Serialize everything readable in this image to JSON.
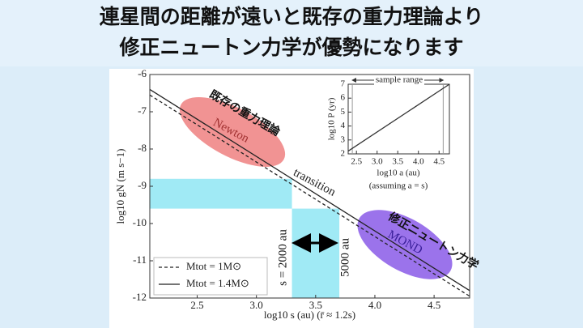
{
  "slide_title": [
    "連星間の距離が遠いと既存の重力理論より",
    "修正ニュートン力学が優勢になります"
  ],
  "overlay_labels": [
    "既存の重力理論",
    "修正ニュートン力学"
  ],
  "chart_data": [
    {
      "type": "line",
      "xlabel": "log10 s (au)   (r̄ ≈ 1.2s)",
      "ylabel": "log10 gN (m s−1)",
      "x": [
        2.1,
        4.8
      ],
      "series": [
        {
          "name": "Mtot = 1M⊙",
          "color": "#222222",
          "dash": true,
          "values": [
            -6.55,
            -11.95
          ]
        },
        {
          "name": "Mtot = 1.4M⊙",
          "color": "#222222",
          "dash": false,
          "values": [
            -6.4,
            -11.8
          ]
        }
      ],
      "xlim": [
        2.1,
        4.8
      ],
      "ylim": [
        -12,
        -6
      ],
      "xticks": [
        2.5,
        {
          "value": 3,
          "label": "3.0"
        },
        3.5,
        {
          "value": 4,
          "label": "4.0"
        },
        4.5
      ],
      "yticks": [
        -6,
        -7,
        -8,
        -9,
        -10,
        -11,
        -12
      ],
      "x_band": [
        3.3,
        3.7
      ],
      "y_band": [
        -9.6,
        -8.8
      ],
      "band_color": "#8fe6f3",
      "annotations": [
        "Newton",
        "transition",
        "MOND",
        "s = 2000 au",
        "5000 au"
      ],
      "legend": "lower left"
    },
    {
      "type": "line",
      "title": "sample range",
      "xlabel": "log10 a (au)",
      "ylabel": "log10 P (yr)",
      "note": "(assuming a = s)",
      "x": [
        2.3,
        4.75
      ],
      "series": [
        {
          "color": "#333333",
          "values": [
            2.2,
            7.0
          ]
        }
      ],
      "xlim": [
        2.3,
        4.75
      ],
      "ylim": [
        2,
        7
      ],
      "xticks": [
        2.5,
        {
          "value": 3,
          "label": "3.0"
        },
        3.5,
        {
          "value": 4,
          "label": "4.0"
        },
        4.5
      ],
      "yticks": [
        2,
        3,
        4,
        5,
        6,
        7
      ],
      "sample_range": [
        2.4,
        4.6
      ]
    }
  ]
}
